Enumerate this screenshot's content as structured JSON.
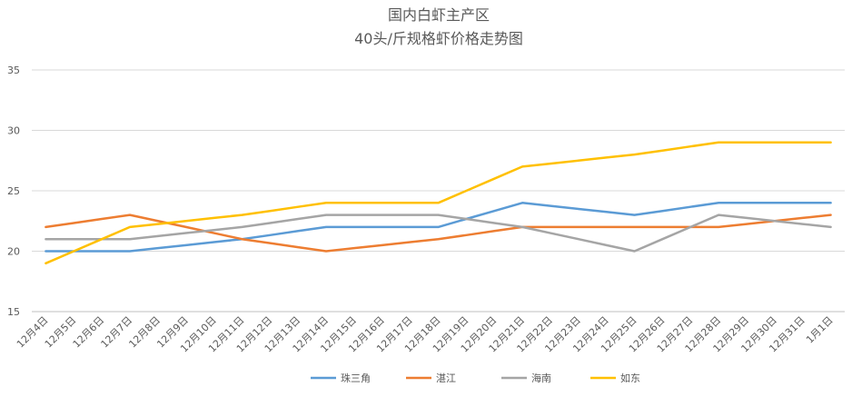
{
  "chart_data": {
    "type": "line",
    "title": "国内白虾主产区",
    "subtitle": "40头/斤规格虾价格走势图",
    "categories": [
      "12月4日",
      "12月5日",
      "12月6日",
      "12月7日",
      "12月8日",
      "12月9日",
      "12月10日",
      "12月11日",
      "12月12日",
      "12月13日",
      "12月14日",
      "12月15日",
      "12月16日",
      "12月17日",
      "12月18日",
      "12月19日",
      "12月20日",
      "12月21日",
      "12月22日",
      "12月23日",
      "12月24日",
      "12月25日",
      "12月26日",
      "12月27日",
      "12月28日",
      "12月29日",
      "12月30日",
      "12月31日",
      "1月1日"
    ],
    "series": [
      {
        "name": "珠三角",
        "color": "#5b9bd5",
        "values": [
          20,
          20,
          20,
          20,
          20.25,
          20.5,
          20.75,
          21,
          21.33,
          21.67,
          22,
          22,
          22,
          22,
          22,
          22.67,
          23.33,
          24,
          23.75,
          23.5,
          23.25,
          23,
          23.33,
          23.67,
          24,
          24,
          24,
          24,
          24
        ]
      },
      {
        "name": "湛江",
        "color": "#ed7d31",
        "values": [
          22,
          22.33,
          22.67,
          23,
          22.5,
          22,
          21.5,
          21,
          20.67,
          20.33,
          20,
          20.25,
          20.5,
          20.75,
          21,
          21.33,
          21.67,
          22,
          22,
          22,
          22,
          22,
          22,
          22,
          22,
          22.25,
          22.5,
          22.75,
          23
        ]
      },
      {
        "name": "海南",
        "color": "#a5a5a5",
        "values": [
          21,
          21,
          21,
          21,
          21.25,
          21.5,
          21.75,
          22,
          22.33,
          22.67,
          23,
          23,
          23,
          23,
          23,
          22.67,
          22.33,
          22,
          21.5,
          21,
          20.5,
          20,
          21,
          22,
          23,
          22.75,
          22.5,
          22.25,
          22
        ]
      },
      {
        "name": "如东",
        "color": "#ffc000",
        "values": [
          19,
          20,
          21,
          22,
          22.25,
          22.5,
          22.75,
          23,
          23.33,
          23.67,
          24,
          24,
          24,
          24,
          24,
          25,
          26,
          27,
          27.25,
          27.5,
          27.75,
          28,
          28.33,
          28.67,
          29,
          29,
          29,
          29,
          29
        ]
      }
    ],
    "ylim": [
      15,
      35
    ],
    "yticks": [
      15,
      20,
      25,
      30,
      35
    ],
    "grid": true
  }
}
